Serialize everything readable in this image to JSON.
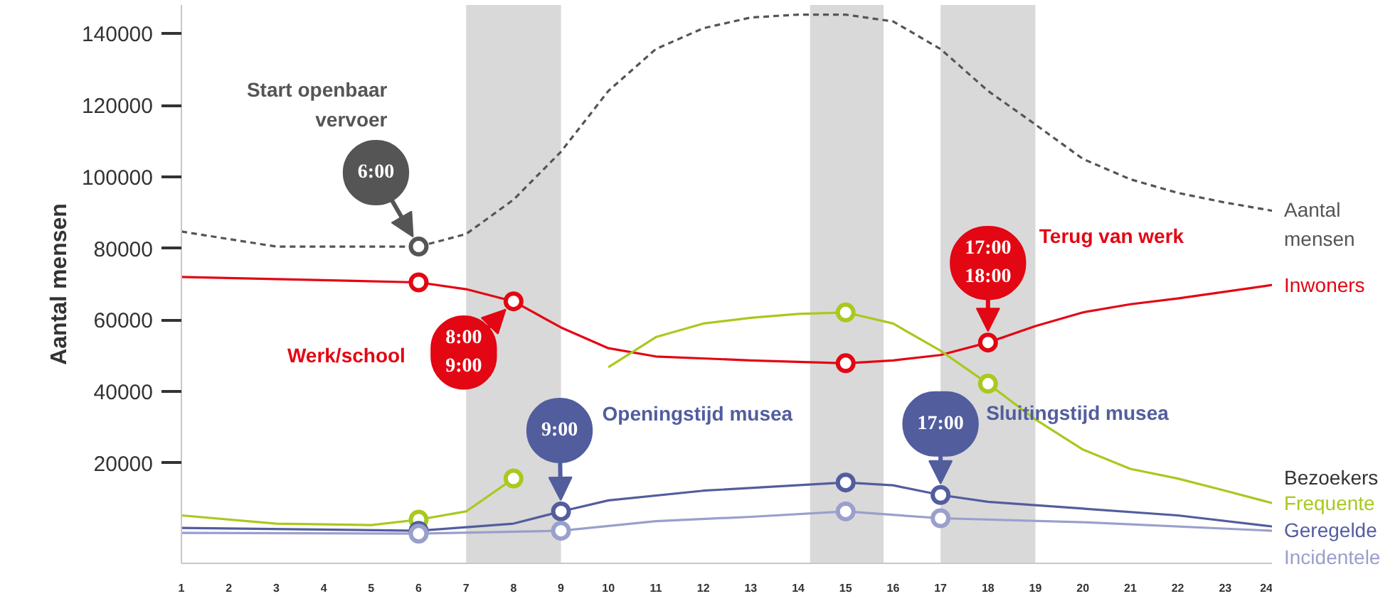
{
  "chart_data": {
    "type": "line",
    "ylabel": "Aantal mensen",
    "legend_title": "Bezoekers",
    "xlim": [
      1,
      24
    ],
    "xticks": [
      1,
      2,
      3,
      4,
      5,
      6,
      7,
      8,
      9,
      10,
      11,
      12,
      13,
      14,
      15,
      16,
      17,
      18,
      19,
      20,
      21,
      22,
      23,
      24
    ],
    "ylim": [
      -8000,
      148000
    ],
    "yticks": [
      20000,
      40000,
      60000,
      80000,
      100000,
      120000,
      140000
    ],
    "bands": [
      {
        "axis": "x",
        "from": 7,
        "to": 9,
        "color": "#d9d9d9"
      },
      {
        "axis": "x",
        "from": 14.25,
        "to": 15.8,
        "color": "#d9d9d9"
      },
      {
        "axis": "x",
        "from": 17,
        "to": 19,
        "color": "#d9d9d9"
      }
    ],
    "series": [
      {
        "name": "Aantal mensen",
        "line_style": "dashed",
        "color": "#555555",
        "x": [
          1,
          3,
          6,
          7,
          8,
          9,
          10,
          11,
          12,
          13,
          14,
          15,
          16,
          17,
          18,
          19,
          20,
          21,
          22,
          23,
          24
        ],
        "values": [
          84700,
          80500,
          80500,
          84000,
          93600,
          107000,
          124000,
          135700,
          141500,
          144500,
          145300,
          145300,
          143400,
          135700,
          124000,
          114600,
          105000,
          99300,
          95500,
          92800,
          90500
        ]
      },
      {
        "name": "Inwoners",
        "color": "#e30613",
        "x": [
          1,
          6,
          7,
          8,
          9,
          10,
          11,
          13,
          15,
          16,
          17,
          18,
          19,
          20,
          21,
          22,
          24
        ],
        "values": [
          72000,
          70500,
          68600,
          65200,
          57900,
          52100,
          49800,
          48700,
          47900,
          48700,
          50200,
          53700,
          58300,
          62100,
          64400,
          66000,
          69800
        ]
      },
      {
        "name": "Frequente",
        "color": "#a8c91e",
        "x": [
          1,
          3,
          5,
          6,
          7,
          8,
          9,
          10,
          11,
          12,
          13,
          14,
          15,
          16,
          17,
          18,
          19,
          20,
          21,
          22,
          23,
          24
        ],
        "values": [
          5400,
          3100,
          2700,
          4200,
          6500,
          15700,
          null,
          46800,
          55200,
          59000,
          60600,
          61700,
          62100,
          59000,
          51400,
          42200,
          32200,
          23800,
          18400,
          15700,
          12300,
          8800
        ]
      },
      {
        "name": "Geregelde",
        "color": "#525d9e",
        "x": [
          1,
          6,
          8,
          9,
          10,
          12,
          15,
          16,
          17,
          18,
          20,
          22,
          24
        ],
        "values": [
          1900,
          1100,
          3100,
          6500,
          9600,
          12300,
          14600,
          13800,
          11100,
          9200,
          7300,
          5400,
          2300
        ]
      },
      {
        "name": "Incidentele",
        "color": "#9a9fcc",
        "x": [
          1,
          6,
          9,
          11,
          13,
          15,
          17,
          20,
          24
        ],
        "values": [
          500,
          300,
          1100,
          3800,
          5000,
          6500,
          4600,
          3500,
          1100
        ]
      },
      {
        "type": "scatter",
        "marker": "circle",
        "color": "#555555",
        "x": [
          6
        ],
        "values": [
          80500
        ]
      },
      {
        "type": "scatter",
        "marker": "circle",
        "color": "#e30613",
        "x": [
          6,
          8,
          15,
          18
        ],
        "values": [
          70500,
          65200,
          47900,
          53700
        ]
      },
      {
        "type": "scatter",
        "marker": "circle",
        "color": "#a8c91e",
        "x": [
          6,
          8,
          15,
          18
        ],
        "values": [
          4200,
          15700,
          62100,
          42200
        ]
      },
      {
        "type": "scatter",
        "marker": "circle",
        "color": "#525d9e",
        "x": [
          6,
          9,
          15,
          17
        ],
        "values": [
          1100,
          6500,
          14600,
          11100
        ]
      },
      {
        "type": "scatter",
        "marker": "circle",
        "color": "#9a9fcc",
        "x": [
          6,
          9,
          15,
          17
        ],
        "values": [
          300,
          1100,
          6500,
          4600
        ]
      }
    ],
    "annotations": [
      {
        "text": "6:00",
        "x": 6,
        "y": 80500
      },
      "Start openbaar vervoer",
      {
        "text": "8:00\n9:00",
        "x": 8,
        "y": 65200
      },
      "Werk/school",
      {
        "text": "9:00",
        "x": 9,
        "y": 6500
      },
      "Openingstijd musea",
      {
        "text": "17:00",
        "x": 17,
        "y": 11100
      },
      "Sluitingstijd musea",
      {
        "text": "17:00\n18:00",
        "x": 18,
        "y": 53700
      },
      "Terug van werk"
    ]
  }
}
